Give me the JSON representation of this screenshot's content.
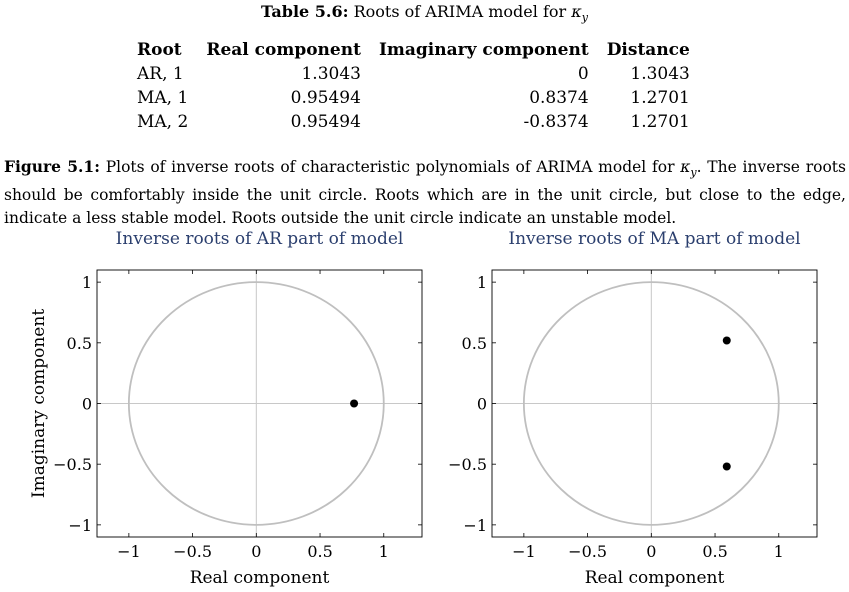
{
  "table": {
    "caption_label": "Table 5.6:",
    "caption_text": "Roots of ARIMA model for",
    "caption_symbol": "κ",
    "caption_subscript": "y",
    "headers": [
      "Root",
      "Real component",
      "Imaginary component",
      "Distance"
    ],
    "rows": [
      [
        "AR, 1",
        "1.3043",
        "0",
        "1.3043"
      ],
      [
        "MA, 1",
        "0.95494",
        "0.8374",
        "1.2701"
      ],
      [
        "MA, 2",
        "0.95494",
        "-0.8374",
        "1.2701"
      ]
    ]
  },
  "figure": {
    "label": "Figure 5.1:",
    "text_before_symbol": "Plots of inverse roots of characteristic polynomials of ARIMA model for",
    "symbol": "κ",
    "subscript": "y",
    "text_after_symbol": ". The inverse roots should be comfortably inside the unit circle. Roots which are in the unit circle, but close to the edge, indicate a less stable model. Roots outside the unit circle indicate an unstable model."
  },
  "chart_data": [
    {
      "type": "scatter",
      "title": "Inverse roots of AR part of model",
      "xlabel": "Real component",
      "ylabel": "Imaginary component",
      "xlim": [
        -1.25,
        1.3
      ],
      "ylim": [
        -1.1,
        1.1
      ],
      "xticks": [
        -1,
        -0.5,
        0,
        0.5,
        1
      ],
      "xtick_labels": [
        "−1",
        "−0.5",
        "0",
        "0.5",
        "1"
      ],
      "yticks": [
        -1,
        -0.5,
        0,
        0.5,
        1
      ],
      "ytick_labels": [
        "−1",
        "−0.5",
        "0",
        "0.5",
        "1"
      ],
      "unit_circle": true,
      "points": [
        {
          "x": 0.767,
          "y": 0
        }
      ],
      "colors": {
        "circle": "#bfbfbf",
        "axes": "#c8c8c8",
        "frame": "#000000",
        "point": "#000000"
      }
    },
    {
      "type": "scatter",
      "title": "Inverse roots of MA part of model",
      "xlabel": "Real component",
      "ylabel": "",
      "xlim": [
        -1.25,
        1.3
      ],
      "ylim": [
        -1.1,
        1.1
      ],
      "xticks": [
        -1,
        -0.5,
        0,
        0.5,
        1
      ],
      "xtick_labels": [
        "−1",
        "−0.5",
        "0",
        "0.5",
        "1"
      ],
      "yticks": [
        -1,
        -0.5,
        0,
        0.5,
        1
      ],
      "ytick_labels": [
        "−1",
        "−0.5",
        "0",
        "0.5",
        "1"
      ],
      "unit_circle": true,
      "points": [
        {
          "x": 0.592,
          "y": 0.519
        },
        {
          "x": 0.592,
          "y": -0.519
        }
      ],
      "colors": {
        "circle": "#bfbfbf",
        "axes": "#c8c8c8",
        "frame": "#000000",
        "point": "#000000"
      }
    }
  ]
}
